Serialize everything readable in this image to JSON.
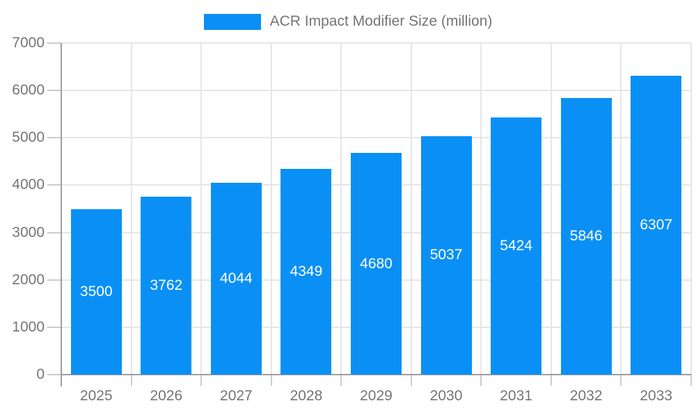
{
  "legend": {
    "label": "ACR Impact Modifier Size (million)",
    "swatch_color": "#0a90f5"
  },
  "chart_data": {
    "type": "bar",
    "title": "ACR Impact Modifier Size (million)",
    "categories": [
      "2025",
      "2026",
      "2027",
      "2028",
      "2029",
      "2030",
      "2031",
      "2032",
      "2033"
    ],
    "values": [
      3500,
      3762,
      4044,
      4349,
      4680,
      5037,
      5424,
      5846,
      6307
    ],
    "xlabel": "",
    "ylabel": "",
    "ylim": [
      0,
      7000
    ],
    "yticks": [
      0,
      1000,
      2000,
      3000,
      4000,
      5000,
      6000,
      7000
    ],
    "grid": true,
    "legend_position": "top",
    "bar_color": "#0a90f5",
    "value_label_color": "#ffffff"
  },
  "colors": {
    "axis_text": "#757575",
    "grid_line": "#e6e6e6",
    "tick_line": "#cccccc",
    "axis_line": "#9e9e9e",
    "background": "#ffffff"
  }
}
